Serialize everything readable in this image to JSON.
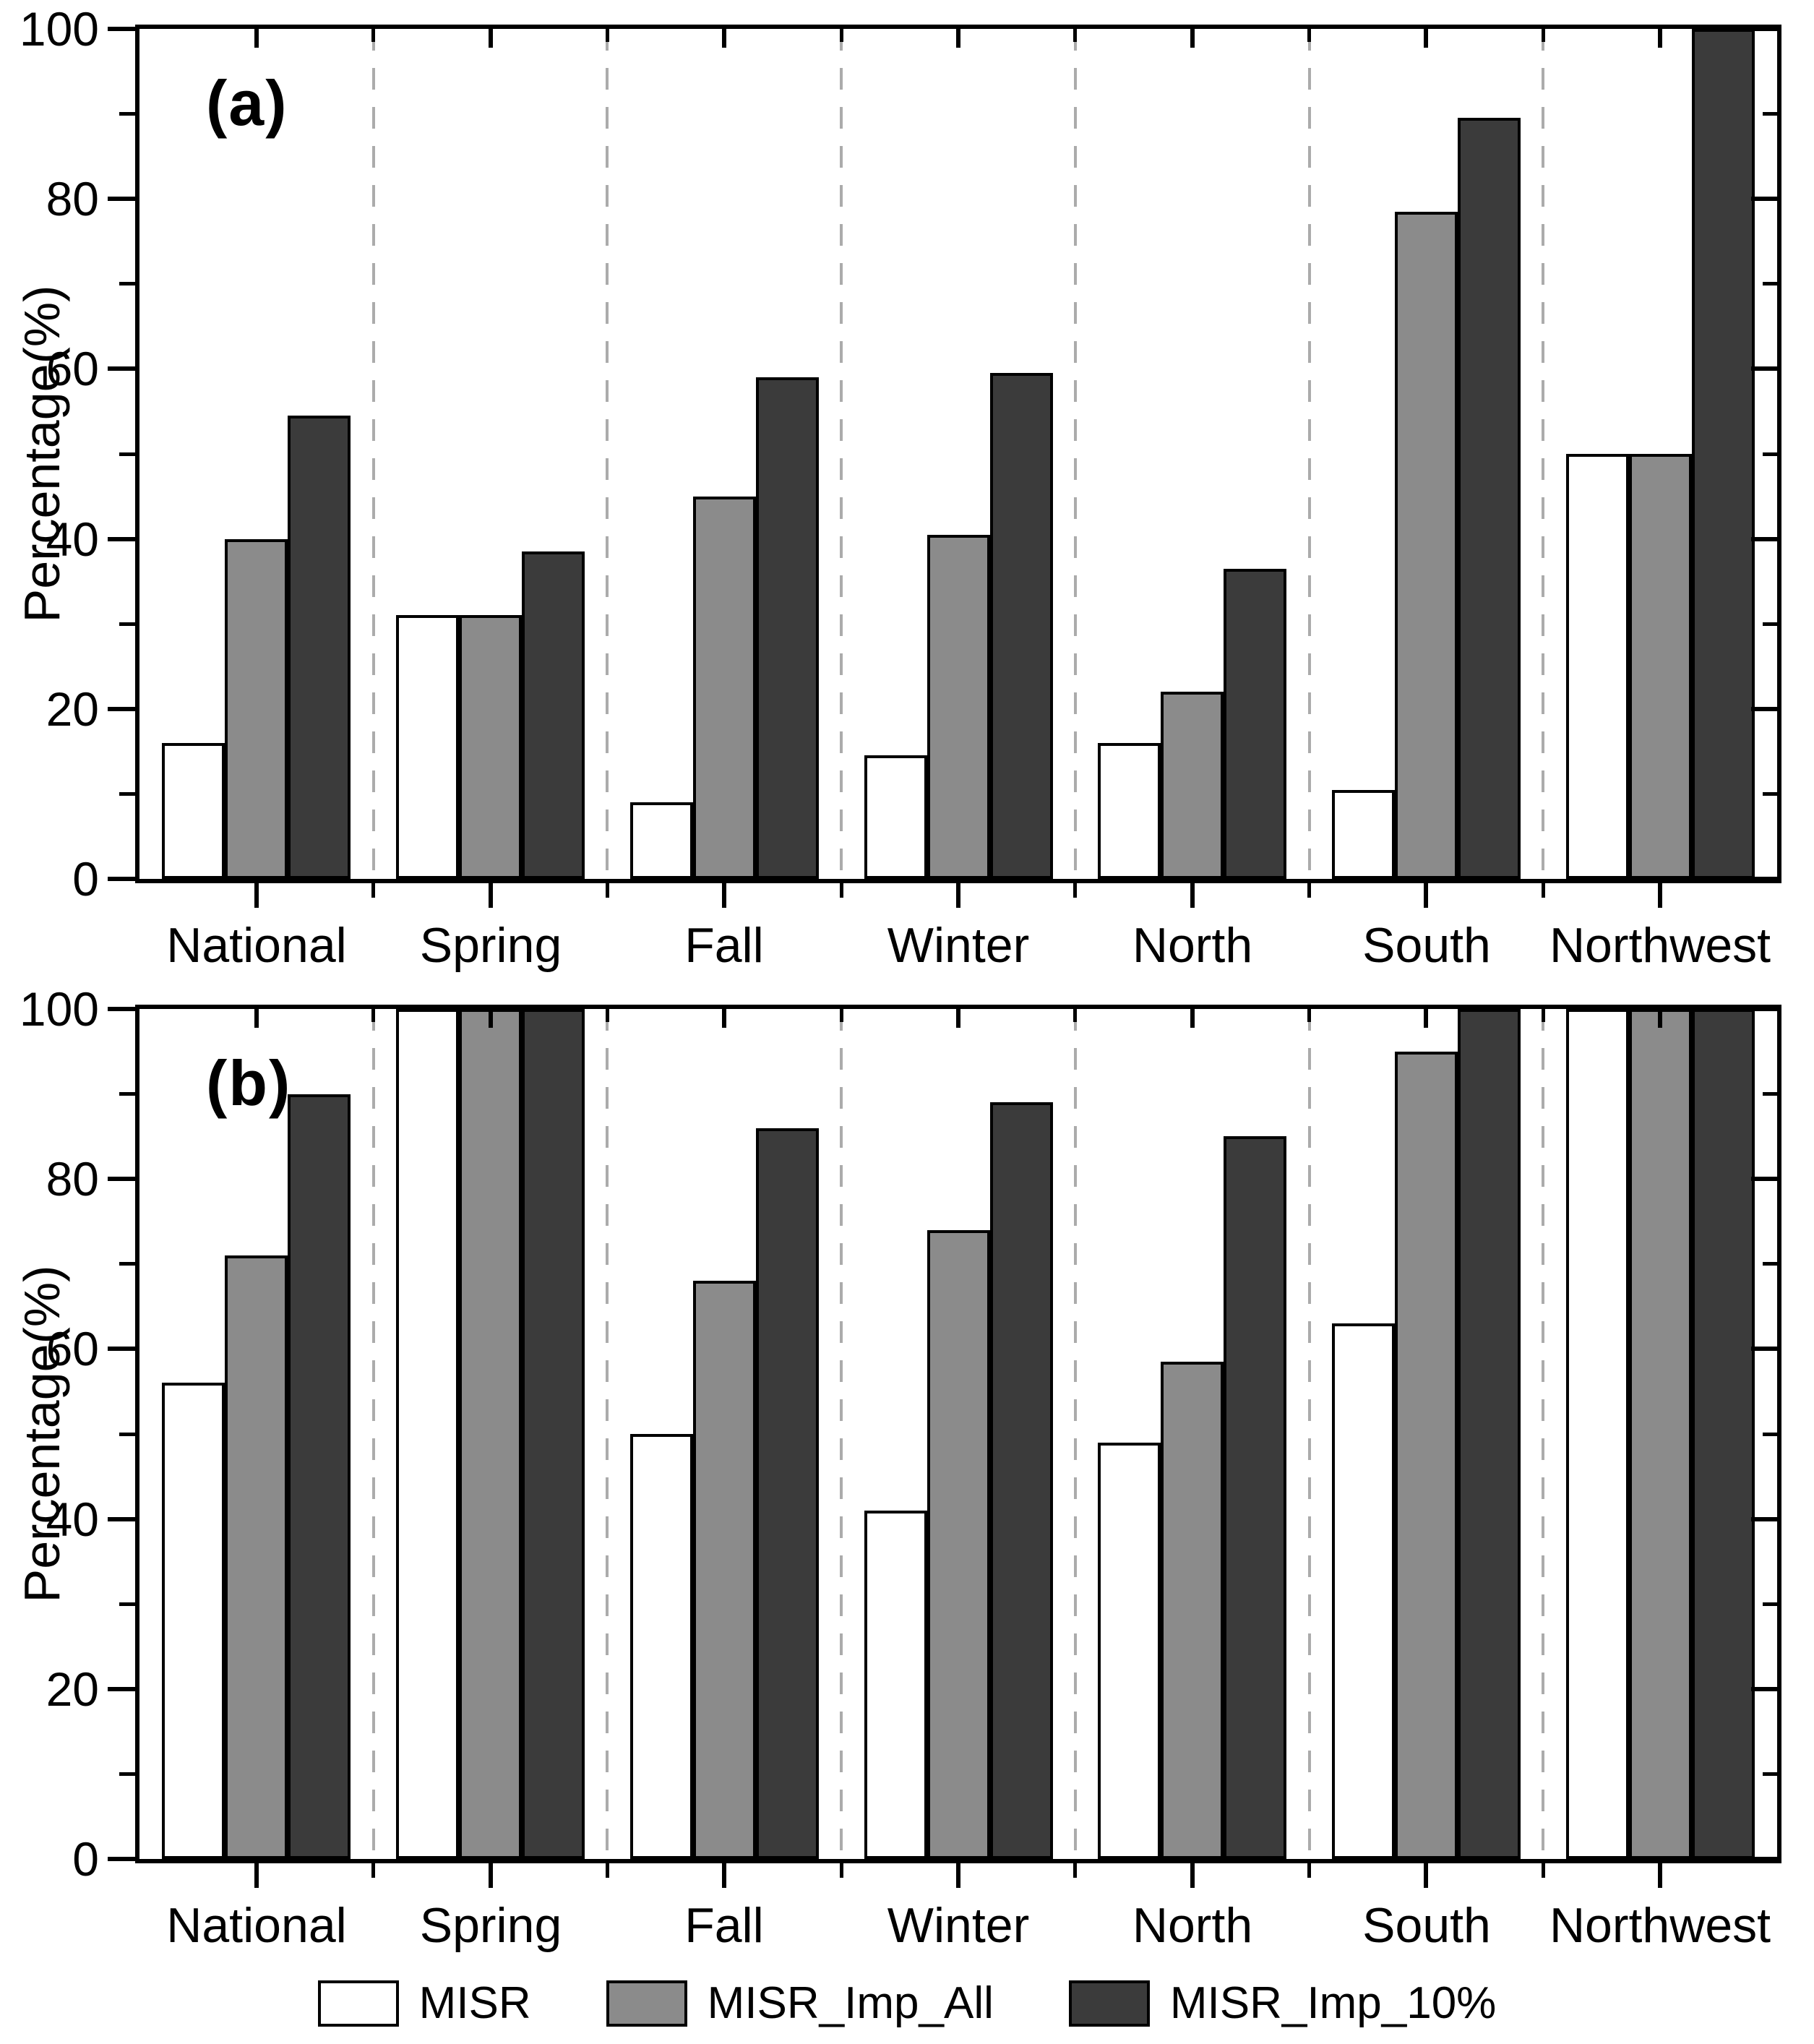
{
  "figure": {
    "colors": {
      "background": "#ffffff",
      "axis": "#000000",
      "separator": "#ababab",
      "bar_white": "#ffffff",
      "bar_gray": "#8b8b8b",
      "bar_dark": "#3b3b3b",
      "text": "#000000"
    },
    "legend": [
      {
        "label": "MISR",
        "color": "#ffffff"
      },
      {
        "label": "MISR_Imp_All",
        "color": "#8b8b8b"
      },
      {
        "label": "MISR_Imp_10%",
        "color": "#3b3b3b"
      }
    ]
  },
  "chart_data": [
    {
      "type": "bar",
      "panel_label": "(a)",
      "categories": [
        "National",
        "Spring",
        "Fall",
        "Winter",
        "North",
        "South",
        "Northwest"
      ],
      "series": [
        {
          "name": "MISR",
          "values": [
            16,
            31,
            9,
            14.5,
            16,
            10.5,
            50
          ]
        },
        {
          "name": "MISR_Imp_All",
          "values": [
            40,
            31,
            45,
            40.5,
            22,
            78.5,
            50
          ]
        },
        {
          "name": "MISR_Imp_10%",
          "values": [
            54.5,
            38.5,
            59,
            59.5,
            36.5,
            89.5,
            100
          ]
        }
      ],
      "xlabel": "",
      "ylabel": "Percentage(%)",
      "ylim": [
        0,
        100
      ],
      "yticks": [
        0,
        20,
        40,
        60,
        80,
        100
      ],
      "yminorticks": [
        10,
        30,
        50,
        70,
        90
      ],
      "grid": "off",
      "group_separators": "dashed",
      "legend_position": "bottom"
    },
    {
      "type": "bar",
      "panel_label": "(b)",
      "categories": [
        "National",
        "Spring",
        "Fall",
        "Winter",
        "North",
        "South",
        "Northwest"
      ],
      "series": [
        {
          "name": "MISR",
          "values": [
            56,
            100,
            50,
            41,
            49,
            63,
            100
          ]
        },
        {
          "name": "MISR_Imp_All",
          "values": [
            71,
            100,
            68,
            74,
            58.5,
            95,
            100
          ]
        },
        {
          "name": "MISR_Imp_10%",
          "values": [
            90,
            100,
            86,
            89,
            85,
            100,
            100
          ]
        }
      ],
      "xlabel": "",
      "ylabel": "Percentage(%)",
      "ylim": [
        0,
        100
      ],
      "yticks": [
        0,
        20,
        40,
        60,
        80,
        100
      ],
      "yminorticks": [
        10,
        30,
        50,
        70,
        90
      ],
      "grid": "off",
      "group_separators": "dashed",
      "legend_position": "bottom"
    }
  ]
}
